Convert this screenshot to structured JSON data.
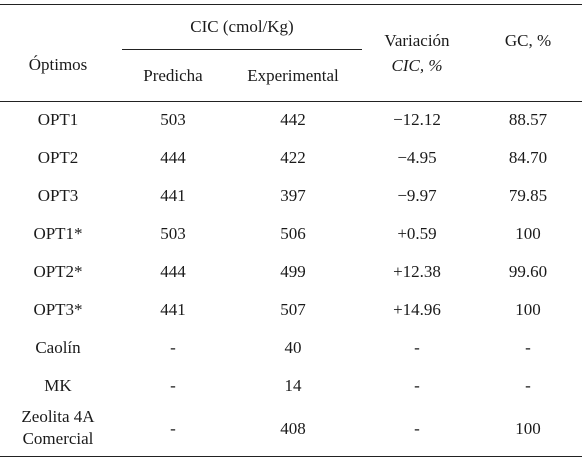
{
  "header": {
    "optimos": "Óptimos",
    "cic": "CIC (cmol/Kg)",
    "predicha": "Predicha",
    "experimental": "Experimental",
    "variacion_line1": "Variación",
    "variacion_line2": "CIC, %",
    "gc": "GC, %"
  },
  "rows": [
    {
      "name": "OPT1",
      "pred": "503",
      "exp": "442",
      "var": "−12.12",
      "gc": "88.57"
    },
    {
      "name": "OPT2",
      "pred": "444",
      "exp": "422",
      "var": "−4.95",
      "gc": "84.70"
    },
    {
      "name": "OPT3",
      "pred": "441",
      "exp": "397",
      "var": "−9.97",
      "gc": "79.85"
    },
    {
      "name": "OPT1*",
      "pred": "503",
      "exp": "506",
      "var": "+0.59",
      "gc": "100"
    },
    {
      "name": "OPT2*",
      "pred": "444",
      "exp": "499",
      "var": "+12.38",
      "gc": "99.60"
    },
    {
      "name": "OPT3*",
      "pred": "441",
      "exp": "507",
      "var": "+14.96",
      "gc": "100"
    },
    {
      "name": "Caolín",
      "pred": "-",
      "exp": "40",
      "var": "-",
      "gc": "-"
    },
    {
      "name": "MK",
      "pred": "-",
      "exp": "14",
      "var": "-",
      "gc": "-"
    },
    {
      "name_line1": "Zeolita 4A",
      "name_line2": "Comercial",
      "pred": "-",
      "exp": "408",
      "var": "-",
      "gc": "100"
    }
  ]
}
